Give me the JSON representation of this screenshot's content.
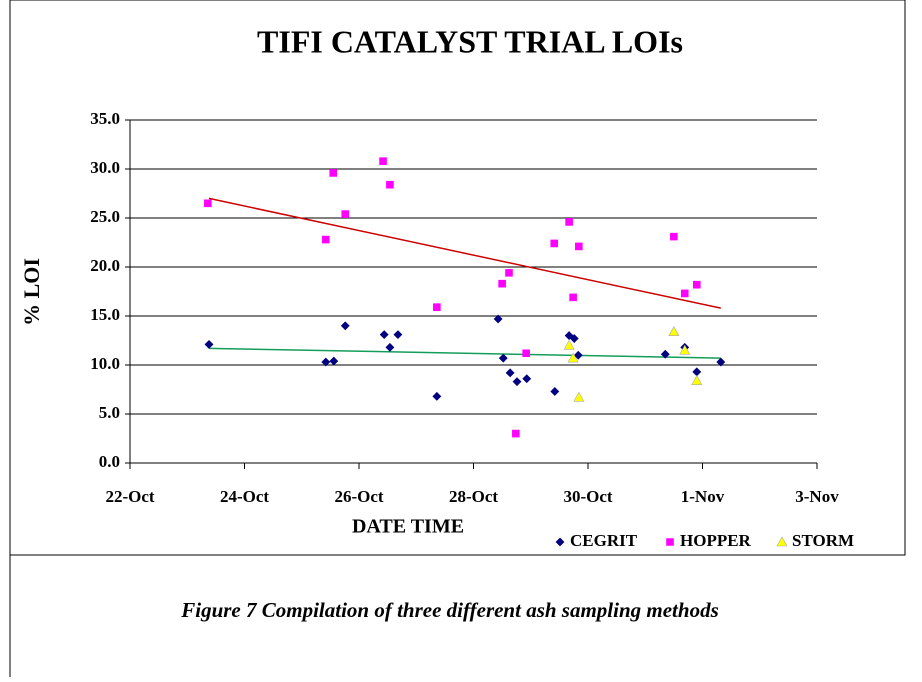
{
  "chart_data": {
    "type": "scatter",
    "title": "TIFI CATALYST TRIAL LOIs",
    "x_label": "DATE TIME",
    "y_label": "% LOI",
    "xlim": [
      22,
      34
    ],
    "xticks": [
      {
        "value": 22,
        "label": "22-Oct"
      },
      {
        "value": 24,
        "label": "24-Oct"
      },
      {
        "value": 26,
        "label": "26-Oct"
      },
      {
        "value": 28,
        "label": "28-Oct"
      },
      {
        "value": 30,
        "label": "30-Oct"
      },
      {
        "value": 32,
        "label": "1-Nov"
      },
      {
        "value": 34,
        "label": "3-Nov"
      }
    ],
    "ylim": [
      0,
      35
    ],
    "yticks": [
      {
        "value": 0,
        "label": "0.0"
      },
      {
        "value": 5,
        "label": "5.0"
      },
      {
        "value": 10,
        "label": "10.0"
      },
      {
        "value": 15,
        "label": "15.0"
      },
      {
        "value": 20,
        "label": "20.0"
      },
      {
        "value": 25,
        "label": "25.0"
      },
      {
        "value": 30,
        "label": "30.0"
      },
      {
        "value": 35,
        "label": "35.0"
      }
    ],
    "grid": true,
    "legend": "bottom-right",
    "series": [
      {
        "name": "CEGRIT",
        "color": "#000080",
        "marker": "diamond",
        "x": [
          23.38,
          25.42,
          25.56,
          25.76,
          26.44,
          26.54,
          26.68,
          27.36,
          28.43,
          28.52,
          28.64,
          28.76,
          28.93,
          29.42,
          29.67,
          29.76,
          29.83,
          31.35,
          31.69,
          31.9,
          32.32
        ],
        "values": [
          12.1,
          10.3,
          10.4,
          14.0,
          13.1,
          11.8,
          13.1,
          6.8,
          14.7,
          10.7,
          9.2,
          8.3,
          8.6,
          7.3,
          13.0,
          12.7,
          11.0,
          11.1,
          11.8,
          9.3,
          10.3
        ]
      },
      {
        "name": "HOPPER",
        "color": "#ff00ff",
        "marker": "square",
        "x": [
          23.36,
          25.42,
          25.55,
          25.76,
          26.42,
          26.54,
          27.36,
          28.5,
          28.62,
          28.74,
          28.92,
          29.41,
          29.67,
          29.74,
          29.84,
          31.5,
          31.69,
          31.9
        ],
        "values": [
          26.5,
          22.8,
          29.6,
          25.4,
          30.8,
          28.4,
          15.9,
          18.3,
          19.4,
          3.0,
          11.2,
          22.4,
          24.6,
          16.9,
          22.1,
          23.1,
          17.3,
          18.2
        ]
      },
      {
        "name": "STORM",
        "color": "#ffff00",
        "marker": "triangle",
        "x": [
          29.67,
          29.74,
          29.84,
          31.5,
          31.69,
          31.9
        ],
        "values": [
          12.0,
          10.7,
          6.7,
          13.4,
          11.5,
          8.4
        ]
      }
    ],
    "trendlines": [
      {
        "color": "#cc0000",
        "x": [
          23.38,
          32.32
        ],
        "values": [
          27.0,
          15.8
        ]
      },
      {
        "color": "#129d5a",
        "x": [
          23.38,
          32.32
        ],
        "values": [
          11.7,
          10.7
        ]
      }
    ]
  },
  "caption": "Figure 7 Compilation of three different ash sampling methods"
}
